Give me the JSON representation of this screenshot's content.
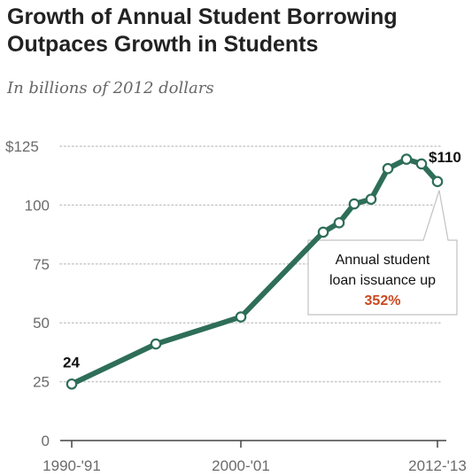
{
  "title_line1": "Growth of Annual Student Borrowing",
  "title_line2": "Outpaces Growth in Students",
  "subtitle": "In billions of 2012 dollars",
  "callout": {
    "line1": "Annual student",
    "line2": "loan issuance up",
    "percent": "352%"
  },
  "colors": {
    "series": "#2e6e58",
    "accent": "#c9481f",
    "grid": "#c8c8c8"
  },
  "chart_data": {
    "type": "line",
    "title": "Growth of Annual Student Borrowing Outpaces Growth in Students",
    "subtitle": "In billions of 2012 dollars",
    "xlabel": "",
    "ylabel": "",
    "ylim": [
      0,
      125
    ],
    "yticks": [
      0,
      25,
      50,
      75,
      100,
      125
    ],
    "ytick_labels": [
      "0",
      "25",
      "50",
      "75",
      "100",
      "$125"
    ],
    "xtick_labels": [
      "1990-'91",
      "2000-'01",
      "2012-'13"
    ],
    "grid": true,
    "series": [
      {
        "x": [
          "1990-91",
          "1995-96",
          "2000-01",
          "2005-06",
          "2006-07",
          "2007-08",
          "2008-09",
          "2009-10",
          "2010-11",
          "2011-12",
          "2012-13"
        ],
        "values": [
          24,
          41,
          52.5,
          88.5,
          92.5,
          100.5,
          102.5,
          115.5,
          119.5,
          117.5,
          110
        ]
      }
    ],
    "data_labels": [
      {
        "point": 0,
        "text": "24"
      },
      {
        "point": 10,
        "text": "$110"
      }
    ]
  }
}
